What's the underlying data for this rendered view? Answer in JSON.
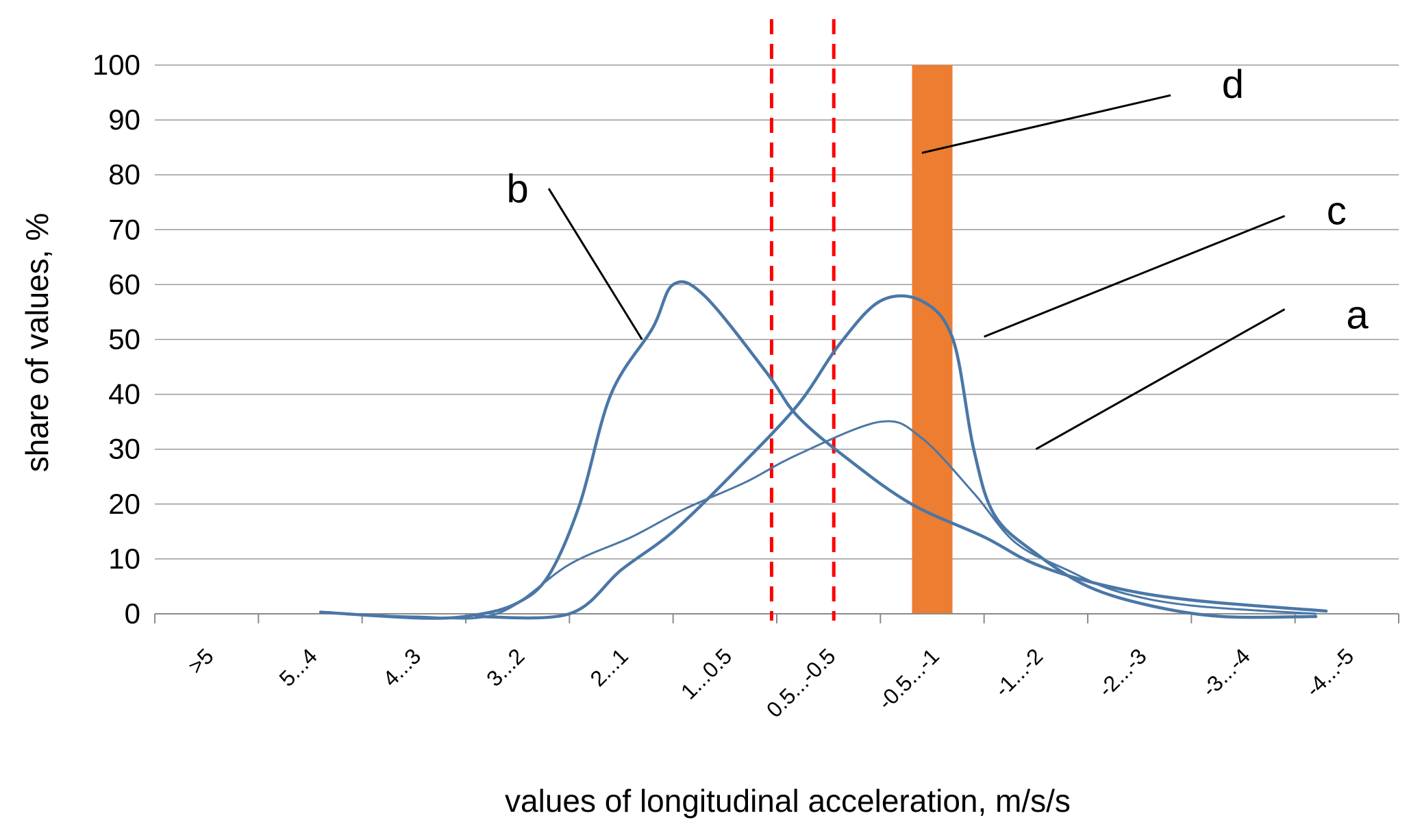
{
  "chart_data": {
    "type": "line",
    "title": "",
    "xlabel": "values of longitudinal acceleration, m/s/s",
    "ylabel": "share of values, %",
    "ylim": [
      0,
      100
    ],
    "yticks": [
      0,
      10,
      20,
      30,
      40,
      50,
      60,
      70,
      80,
      90,
      100
    ],
    "grid": true,
    "categories": [
      ">5",
      "5...4",
      "4...3",
      "3...2",
      "2...1",
      "1...0.5",
      "0.5...-0.5",
      "-0.5...-1",
      "-1...-2",
      "-2...-3",
      "-3...-4",
      "-4...-5"
    ],
    "series": [
      {
        "name": "a",
        "color": "#4a77a6",
        "width": "thin",
        "points": [
          [
            1.6,
            0.3
          ],
          [
            2.5,
            -0.5
          ],
          [
            3.3,
            0
          ],
          [
            4.0,
            9
          ],
          [
            4.6,
            14
          ],
          [
            5.1,
            19
          ],
          [
            5.7,
            24
          ],
          [
            6.2,
            29
          ],
          [
            7.0,
            35
          ],
          [
            7.4,
            32
          ],
          [
            7.9,
            22
          ],
          [
            8.3,
            13
          ],
          [
            8.8,
            8
          ],
          [
            9.3,
            4
          ],
          [
            10.0,
            1.5
          ],
          [
            11.2,
            0
          ]
        ]
      },
      {
        "name": "b",
        "color": "#4a77a6",
        "width": "thick",
        "points": [
          [
            1.6,
            0.3
          ],
          [
            2.6,
            -0.8
          ],
          [
            3.1,
            -0.2
          ],
          [
            3.5,
            2
          ],
          [
            3.8,
            7
          ],
          [
            4.1,
            20
          ],
          [
            4.4,
            40
          ],
          [
            4.8,
            52
          ],
          [
            5.0,
            60
          ],
          [
            5.3,
            58
          ],
          [
            5.9,
            44
          ],
          [
            6.2,
            36
          ],
          [
            6.7,
            28
          ],
          [
            7.3,
            20
          ],
          [
            8.0,
            14
          ],
          [
            8.5,
            9
          ],
          [
            9.2,
            5
          ],
          [
            10.0,
            2.5
          ],
          [
            11.3,
            0.5
          ]
        ]
      },
      {
        "name": "c",
        "color": "#4a77a6",
        "width": "thick",
        "points": [
          [
            3.1,
            -0.5
          ],
          [
            4.0,
            0
          ],
          [
            4.5,
            8
          ],
          [
            5.0,
            15
          ],
          [
            5.6,
            26
          ],
          [
            6.2,
            38
          ],
          [
            6.6,
            49
          ],
          [
            7.0,
            57
          ],
          [
            7.4,
            57
          ],
          [
            7.7,
            50
          ],
          [
            7.9,
            30
          ],
          [
            8.1,
            18
          ],
          [
            8.5,
            11
          ],
          [
            9.0,
            5
          ],
          [
            9.6,
            1.5
          ],
          [
            10.3,
            -0.5
          ],
          [
            11.2,
            -0.5
          ]
        ]
      }
    ],
    "bar": {
      "name": "d",
      "category": "-0.5...-1",
      "value": 100,
      "color": "#ed7d31"
    },
    "reference_lines": [
      {
        "x": 5.95,
        "color": "#ff0000",
        "style": "dashed"
      },
      {
        "x": 6.55,
        "color": "#ff0000",
        "style": "dashed"
      }
    ],
    "annotations": [
      {
        "label": "a",
        "text_at": [
          11.6,
          52
        ],
        "line_from": [
          10.9,
          55.5
        ],
        "line_to": [
          8.5,
          30
        ]
      },
      {
        "label": "b",
        "text_at": [
          3.5,
          75
        ],
        "line_from": [
          3.8,
          77.5
        ],
        "line_to": [
          4.7,
          50
        ]
      },
      {
        "label": "c",
        "text_at": [
          11.4,
          71
        ],
        "line_from": [
          10.9,
          72.5
        ],
        "line_to": [
          8.0,
          50.5
        ]
      },
      {
        "label": "d",
        "text_at": [
          10.4,
          94
        ],
        "line_from": [
          9.8,
          94.5
        ],
        "line_to": [
          7.4,
          84
        ]
      }
    ]
  }
}
